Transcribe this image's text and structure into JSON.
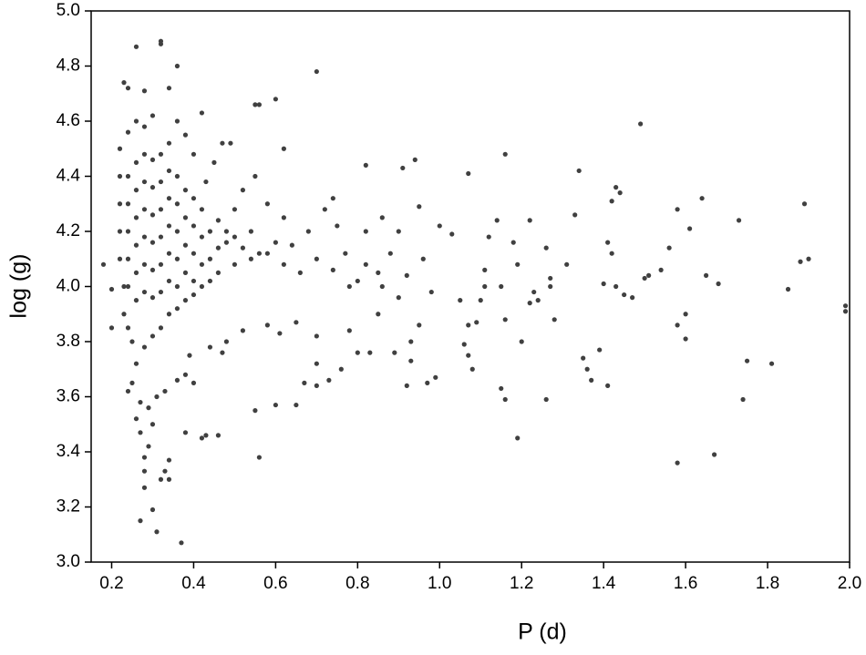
{
  "chart_data": {
    "type": "scatter",
    "xlabel": "P (d)",
    "ylabel": "log (g)",
    "color": "#404040",
    "xlim": [
      0.15,
      2.0
    ],
    "ylim": [
      3.0,
      5.0
    ],
    "xticks": [
      0.2,
      0.4,
      0.6,
      0.8,
      {
        "value": 1,
        "label": "1.0"
      },
      1.2,
      1.4,
      1.6,
      1.8,
      {
        "value": 2,
        "label": "2.0"
      }
    ],
    "yticks": [
      {
        "value": 3,
        "label": "3.0"
      },
      3.2,
      3.4,
      3.6,
      3.8,
      {
        "value": 4,
        "label": "4.0"
      },
      4.2,
      4.4,
      4.6,
      4.8,
      {
        "value": 5,
        "label": "5.0"
      }
    ],
    "x": [
      0.26,
      0.32,
      0.32,
      0.36,
      0.7,
      0.23,
      0.24,
      0.28,
      0.34,
      0.42,
      0.6,
      0.55,
      0.56,
      1.49,
      0.47,
      0.49,
      0.62,
      1.16,
      0.94,
      0.82,
      0.91,
      1.34,
      1.07,
      1.43,
      1.42,
      1.44,
      1.64,
      1.89,
      1.58,
      1.73,
      1.14,
      1.22,
      1.33,
      0.95,
      0.74,
      1.0,
      1.03,
      1.12,
      1.18,
      1.26,
      1.42,
      1.41,
      1.56,
      1.61,
      1.54,
      1.65,
      1.51,
      1.5,
      1.4,
      1.43,
      1.45,
      1.47,
      1.68,
      1.85,
      1.88,
      1.9,
      1.99,
      1.99,
      0.18,
      0.2,
      0.2,
      1.19,
      1.31,
      1.27,
      1.27,
      1.23,
      1.24,
      1.28,
      1.22,
      1.11,
      1.11,
      1.15,
      1.16,
      1.09,
      1.07,
      1.05,
      1.1,
      1.06,
      1.07,
      1.08,
      1.2,
      1.39,
      1.35,
      1.36,
      1.37,
      1.41,
      1.58,
      1.6,
      1.6,
      1.75,
      1.81,
      1.74,
      1.15,
      1.16,
      1.26,
      1.19,
      0.99,
      0.97,
      0.92,
      0.89,
      0.93,
      0.95,
      0.93,
      0.83,
      0.8,
      0.76,
      0.73,
      0.7,
      0.7,
      0.67,
      0.65,
      0.6,
      0.55,
      0.56,
      1.58,
      1.67,
      0.46,
      0.42,
      0.43,
      0.38,
      0.37,
      0.31,
      0.27,
      0.3,
      0.33,
      0.34,
      0.32,
      0.34,
      0.28,
      0.28,
      0.28,
      0.29,
      0.3,
      0.26,
      0.27,
      0.25,
      0.24,
      0.27,
      0.29,
      0.31,
      0.33,
      0.36,
      0.38,
      0.4,
      0.39,
      0.44,
      0.47,
      0.48,
      0.52,
      0.58,
      0.61,
      0.65,
      0.7,
      0.78,
      0.85,
      0.9,
      0.98,
      0.85,
      0.8,
      0.77,
      0.75,
      0.72,
      0.68,
      0.64,
      0.62,
      0.58,
      0.55,
      0.52,
      0.5,
      0.48,
      0.45,
      0.43,
      0.4,
      0.38,
      0.36,
      0.34,
      0.3,
      0.28,
      0.26,
      0.24,
      0.22,
      0.22,
      0.22,
      0.22,
      0.22,
      0.23,
      0.23,
      0.24,
      0.25,
      0.26,
      0.28,
      0.3,
      0.32,
      0.34,
      0.36,
      0.38,
      0.4,
      0.42,
      0.44,
      0.46,
      0.5,
      0.54,
      0.58,
      0.62,
      0.66,
      0.7,
      0.74,
      0.78,
      0.82,
      0.86,
      0.88,
      0.92,
      0.96,
      0.9,
      0.86,
      0.82,
      0.24,
      0.24,
      0.24,
      0.24,
      0.24,
      0.26,
      0.26,
      0.26,
      0.26,
      0.26,
      0.26,
      0.28,
      0.28,
      0.28,
      0.28,
      0.28,
      0.28,
      0.3,
      0.3,
      0.3,
      0.3,
      0.3,
      0.3,
      0.32,
      0.32,
      0.32,
      0.32,
      0.32,
      0.32,
      0.34,
      0.34,
      0.34,
      0.34,
      0.34,
      0.36,
      0.36,
      0.36,
      0.36,
      0.36,
      0.38,
      0.38,
      0.38,
      0.38,
      0.4,
      0.4,
      0.4,
      0.4,
      0.42,
      0.42,
      0.42,
      0.44,
      0.44,
      0.46,
      0.46,
      0.48,
      0.5,
      0.52,
      0.54,
      0.56,
      0.6
    ],
    "y": [
      4.87,
      4.89,
      4.88,
      4.8,
      4.78,
      4.74,
      4.72,
      4.71,
      4.72,
      4.63,
      4.68,
      4.66,
      4.66,
      4.59,
      4.52,
      4.52,
      4.5,
      4.48,
      4.46,
      4.44,
      4.43,
      4.42,
      4.41,
      4.36,
      4.31,
      4.34,
      4.32,
      4.3,
      4.28,
      4.24,
      4.24,
      4.24,
      4.26,
      4.29,
      4.32,
      4.22,
      4.19,
      4.18,
      4.16,
      4.14,
      4.12,
      4.16,
      4.14,
      4.21,
      4.06,
      4.04,
      4.04,
      4.03,
      4.01,
      4.0,
      3.97,
      3.96,
      4.01,
      3.99,
      4.09,
      4.1,
      3.93,
      3.91,
      4.08,
      3.99,
      3.85,
      4.08,
      4.08,
      4.03,
      4.0,
      3.98,
      3.95,
      3.88,
      3.94,
      4.06,
      4.0,
      4.0,
      3.88,
      3.87,
      3.86,
      3.95,
      3.95,
      3.79,
      3.75,
      3.7,
      3.8,
      3.77,
      3.74,
      3.7,
      3.66,
      3.64,
      3.86,
      3.9,
      3.81,
      3.73,
      3.72,
      3.59,
      3.63,
      3.59,
      3.59,
      3.45,
      3.67,
      3.65,
      3.64,
      3.76,
      3.8,
      3.86,
      3.73,
      3.76,
      3.76,
      3.7,
      3.66,
      3.64,
      3.72,
      3.65,
      3.57,
      3.57,
      3.55,
      3.38,
      3.36,
      3.39,
      3.46,
      3.45,
      3.46,
      3.47,
      3.07,
      3.11,
      3.15,
      3.19,
      3.33,
      3.3,
      3.3,
      3.37,
      3.33,
      3.27,
      3.38,
      3.42,
      3.5,
      3.52,
      3.47,
      3.65,
      3.62,
      3.58,
      3.56,
      3.6,
      3.62,
      3.66,
      3.68,
      3.65,
      3.75,
      3.78,
      3.76,
      3.8,
      3.84,
      3.86,
      3.83,
      3.87,
      3.82,
      3.84,
      3.9,
      3.96,
      3.98,
      4.05,
      4.02,
      4.12,
      4.22,
      4.28,
      4.2,
      4.15,
      4.25,
      4.3,
      4.4,
      4.35,
      4.28,
      4.2,
      4.45,
      4.38,
      4.48,
      4.55,
      4.6,
      4.52,
      4.62,
      4.58,
      4.6,
      4.56,
      4.5,
      4.4,
      4.3,
      4.2,
      4.1,
      4.0,
      3.9,
      3.85,
      3.8,
      3.72,
      3.78,
      3.82,
      3.85,
      3.9,
      3.92,
      3.95,
      3.97,
      4.0,
      4.02,
      4.05,
      4.08,
      4.1,
      4.12,
      4.08,
      4.05,
      4.1,
      4.06,
      4.0,
      4.08,
      4.0,
      4.12,
      4.04,
      4.1,
      4.2,
      4.25,
      4.2,
      4.0,
      4.1,
      4.2,
      4.3,
      4.4,
      3.95,
      4.05,
      4.15,
      4.25,
      4.35,
      4.45,
      3.98,
      4.08,
      4.18,
      4.28,
      4.38,
      4.48,
      3.96,
      4.06,
      4.16,
      4.26,
      4.36,
      4.46,
      3.98,
      4.08,
      4.18,
      4.28,
      4.38,
      4.48,
      4.02,
      4.12,
      4.22,
      4.32,
      4.42,
      4.0,
      4.1,
      4.2,
      4.3,
      4.4,
      4.05,
      4.15,
      4.25,
      4.35,
      4.02,
      4.12,
      4.22,
      4.32,
      4.08,
      4.18,
      4.28,
      4.1,
      4.2,
      4.14,
      4.24,
      4.16,
      4.18,
      4.14,
      4.2,
      4.12,
      4.16
    ]
  }
}
